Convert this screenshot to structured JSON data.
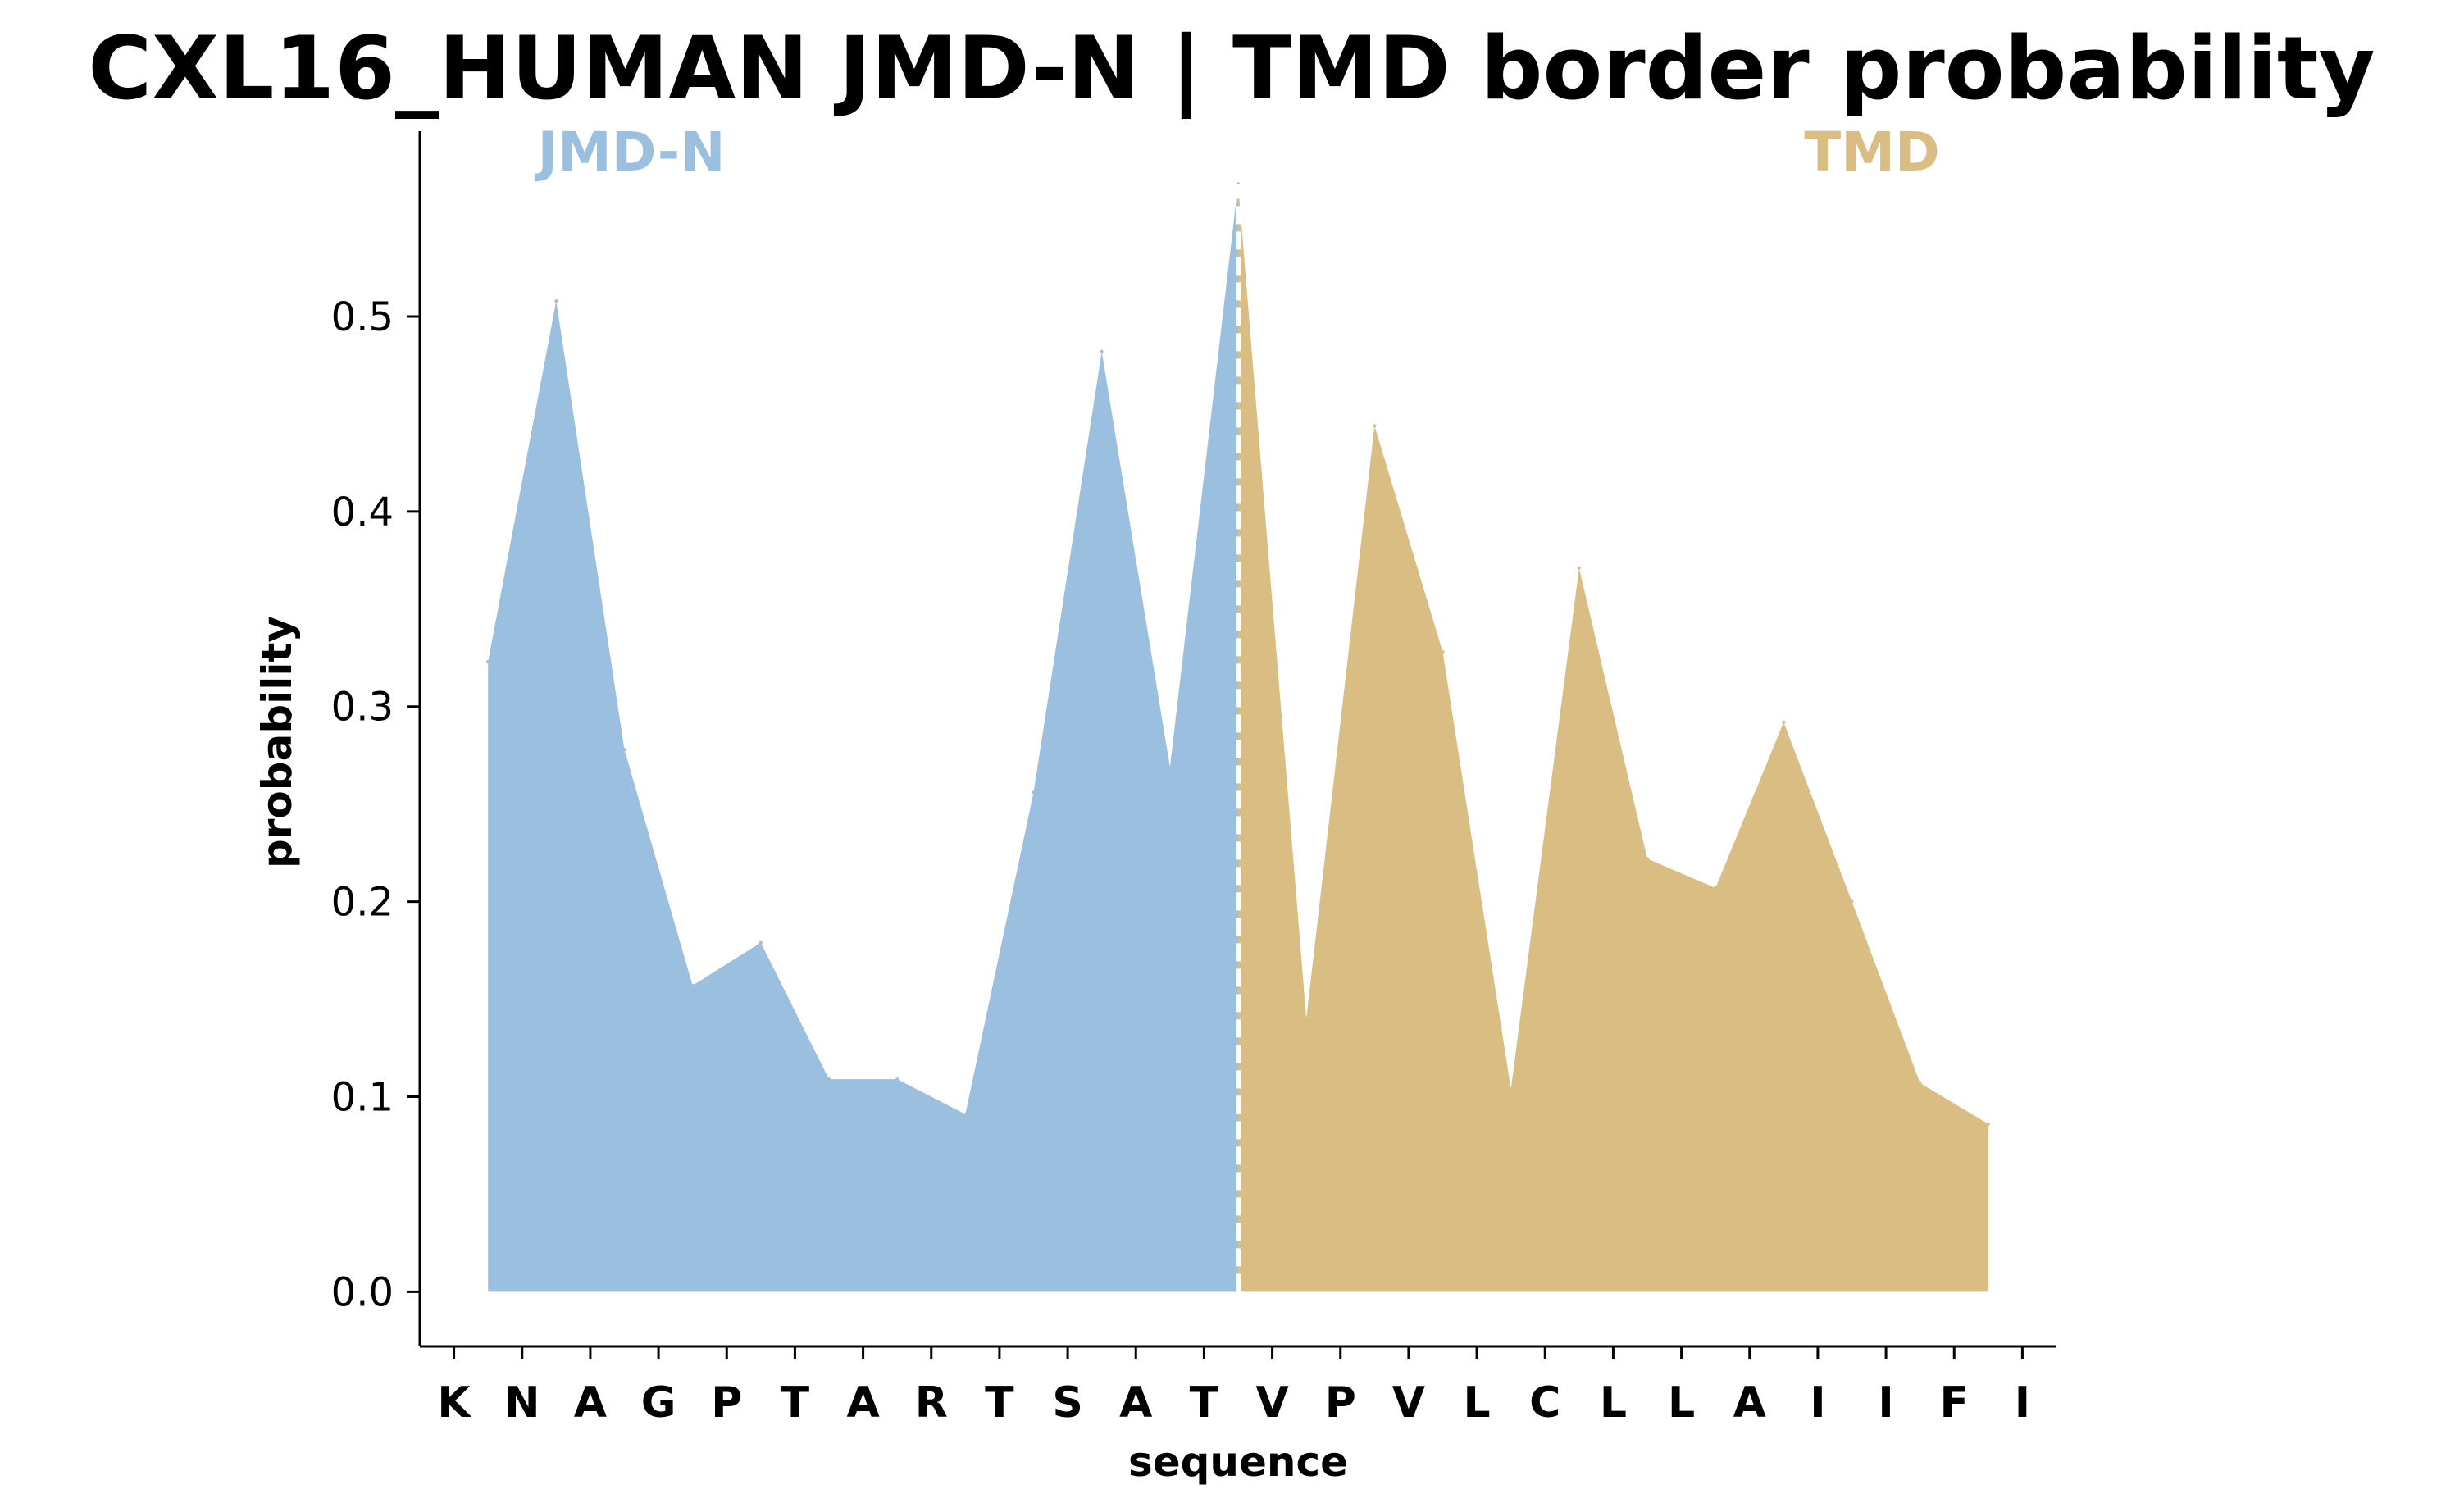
{
  "chart_data": {
    "type": "area",
    "title": "CXL16_HUMAN JMD-N | TMD border probability",
    "xlabel": "sequence",
    "ylabel": "probability",
    "sequence": [
      "K",
      "N",
      "A",
      "G",
      "P",
      "T",
      "A",
      "R",
      "T",
      "S",
      "A",
      "T",
      "V",
      "P",
      "V",
      "L",
      "C",
      "L",
      "L",
      "A",
      "I",
      "I",
      "F",
      "I"
    ],
    "x": [
      0.5,
      1.5,
      2.5,
      3.5,
      4.5,
      5.5,
      6.5,
      7.5,
      8.5,
      9.5,
      10.5,
      11.5,
      12.5,
      13.5,
      14.5,
      15.5,
      16.5,
      17.5,
      18.5,
      19.5,
      20.5,
      21.5,
      22.5
    ],
    "values": [
      0.323,
      0.508,
      0.278,
      0.157,
      0.179,
      0.109,
      0.109,
      0.091,
      0.256,
      0.482,
      0.269,
      0.568,
      0.14,
      0.444,
      0.328,
      0.104,
      0.371,
      0.222,
      0.207,
      0.292,
      0.2,
      0.107,
      0.086
    ],
    "border_x": 11.5,
    "ylim": [
      -0.028,
      0.595
    ],
    "yticks": [
      0.0,
      0.1,
      0.2,
      0.3,
      0.4,
      0.5
    ],
    "ytick_labels": [
      "0.0",
      "0.1",
      "0.2",
      "0.3",
      "0.4",
      "0.5"
    ],
    "regions": [
      {
        "name": "JMD-N",
        "color": "#9bc0df"
      },
      {
        "name": "TMD",
        "color": "#d9bd82"
      }
    ],
    "border_color": "#ffffff",
    "grid": false,
    "legend": "none"
  }
}
